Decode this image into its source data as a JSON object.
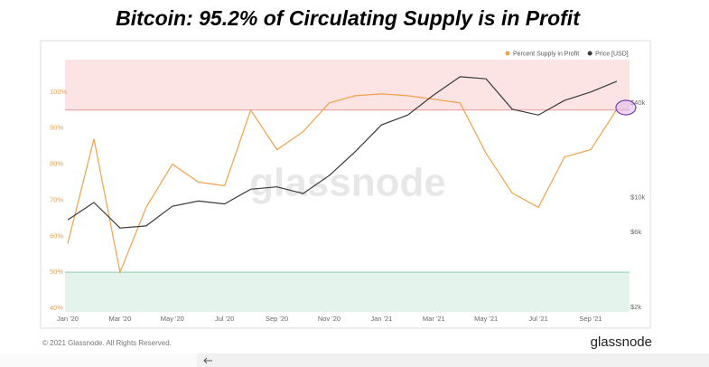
{
  "chart_data": {
    "type": "line",
    "title": "Bitcoin: 95.2% of Circulating Supply is in Profit",
    "watermark": "glassnode",
    "x": [
      "Jan '20",
      null,
      "Mar '20",
      null,
      "May '20",
      null,
      "Jul '20",
      null,
      "Sep '20",
      null,
      "Nov '20",
      null,
      "Jan '21",
      null,
      "Mar '21",
      null,
      "May '21",
      null,
      "Jul '21",
      null,
      "Sep '21",
      null
    ],
    "series": [
      {
        "name": "Percent Supply in Profit",
        "color": "#f0a24a",
        "axis": "y",
        "values": [
          58,
          87,
          50,
          68,
          80,
          75,
          74,
          95,
          84,
          89,
          97,
          99,
          99.5,
          99,
          98,
          97,
          83,
          72,
          68,
          82,
          84,
          95.2
        ]
      },
      {
        "name": "Price [USD]",
        "color": "#3a3a3a",
        "axis": "y2",
        "values": [
          7200,
          9300,
          6400,
          6600,
          8800,
          9500,
          9100,
          11300,
          11700,
          10600,
          13800,
          19600,
          29000,
          33500,
          45000,
          58800,
          57000,
          36500,
          33500,
          41500,
          47000,
          55000
        ]
      }
    ],
    "ylim": [
      39,
      109
    ],
    "yticks": [
      {
        "value": 40,
        "label": "40%"
      },
      {
        "value": 50,
        "label": "50%"
      },
      {
        "value": 60,
        "label": "60%"
      },
      {
        "value": 70,
        "label": "70%"
      },
      {
        "value": 80,
        "label": "80%"
      },
      {
        "value": 90,
        "label": "90%"
      },
      {
        "value": 100,
        "label": "100%"
      }
    ],
    "y2lim": [
      1870,
      75500
    ],
    "y2scale": "log",
    "y2ticks": [
      {
        "value": 2000,
        "label": "$2k"
      },
      {
        "value": 6000,
        "label": "$6k"
      },
      {
        "value": 10000,
        "label": "$10k"
      },
      {
        "value": 40000,
        "label": "$40k"
      }
    ],
    "thresholds": [
      {
        "value": 95,
        "color": "#e89a9a",
        "band": "#fbe4e3",
        "side": "above"
      },
      {
        "value": 50,
        "color": "#8fcfae",
        "band": "#e4f4ec",
        "side": "below"
      }
    ]
  },
  "footer": {
    "copyright": "© 2021 Glassnode. All Rights Reserved.",
    "brand": "glassnode"
  }
}
